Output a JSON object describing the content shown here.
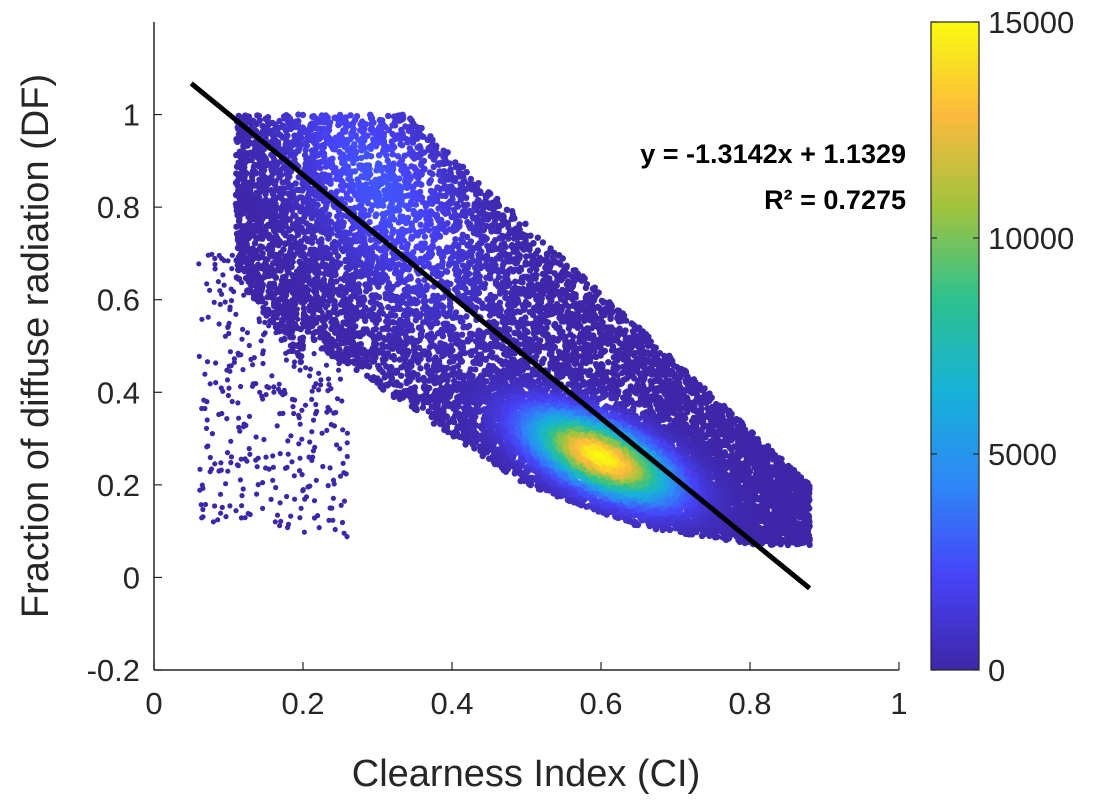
{
  "chart_data": {
    "type": "scatter",
    "style": "density-scatter",
    "xlabel": "Clearness Index (CI)",
    "ylabel": "Fraction of diffuse radiation (DF)",
    "xlim": [
      0,
      1
    ],
    "ylim": [
      -0.2,
      1.2
    ],
    "xticks": [
      0,
      0.2,
      0.4,
      0.6,
      0.8,
      1
    ],
    "xtick_labels": [
      "0",
      "0.2",
      "0.4",
      "0.6",
      "0.8",
      "1"
    ],
    "yticks": [
      -0.2,
      0,
      0.2,
      0.4,
      0.6,
      0.8,
      1
    ],
    "ytick_labels": [
      "-0.2",
      "0",
      "0.2",
      "0.4",
      "0.6",
      "0.8",
      "1"
    ],
    "grid": false,
    "density_peak": {
      "x": 0.6,
      "y": 0.26,
      "count": 15000
    },
    "point_cloud_extent": {
      "x_min": 0.05,
      "x_max": 0.88,
      "y_min": 0.07,
      "y_max": 1.0
    },
    "fit_line": {
      "slope": -1.3142,
      "intercept": 1.1329,
      "x_start": 0.05,
      "x_end": 0.88,
      "color": "#000000"
    },
    "annotations": [
      "y = -1.3142x + 1.1329",
      "R² = 0.7275"
    ],
    "colorbar": {
      "label": "",
      "range": [
        0,
        15000
      ],
      "ticks": [
        0,
        5000,
        10000,
        15000
      ],
      "tick_labels": [
        "0",
        "5000",
        "10000",
        "15000"
      ],
      "colormap": "parula",
      "colors": [
        "#3e26a8",
        "#4743f8",
        "#2e87f7",
        "#17b2d7",
        "#2cc18f",
        "#a1c33e",
        "#fcba3d",
        "#f9fb0e"
      ]
    }
  }
}
